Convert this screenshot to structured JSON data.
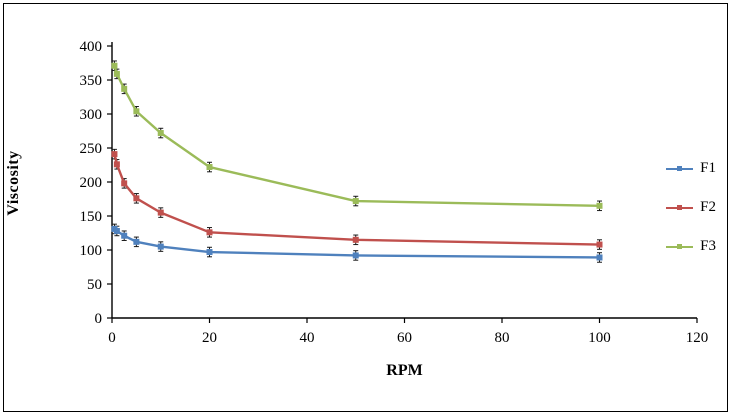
{
  "chart_data": {
    "type": "line",
    "x": [
      0.5,
      1,
      2.5,
      5,
      10,
      20,
      50,
      100
    ],
    "series": [
      {
        "name": "F1",
        "color": "#4f81bd",
        "values": [
          131,
          128,
          121,
          112,
          105,
          97,
          92,
          89
        ]
      },
      {
        "name": "F2",
        "color": "#c0504d",
        "values": [
          241,
          226,
          198,
          176,
          155,
          126,
          115,
          108
        ]
      },
      {
        "name": "F3",
        "color": "#9bbb59",
        "values": [
          371,
          359,
          337,
          304,
          272,
          222,
          172,
          165
        ]
      }
    ],
    "title": "",
    "xlabel": "RPM",
    "ylabel": "Viscosity",
    "xlim": [
      0,
      120
    ],
    "ylim": [
      0,
      400
    ],
    "x_ticks": [
      0,
      20,
      40,
      60,
      80,
      100,
      120
    ],
    "y_ticks": [
      0,
      50,
      100,
      150,
      200,
      250,
      300,
      350,
      400
    ],
    "grid": false,
    "legend_position": "right",
    "error_bar": 7,
    "marker": "square",
    "axis_color": "#000000",
    "error_bar_color": "#1a1a1a"
  }
}
